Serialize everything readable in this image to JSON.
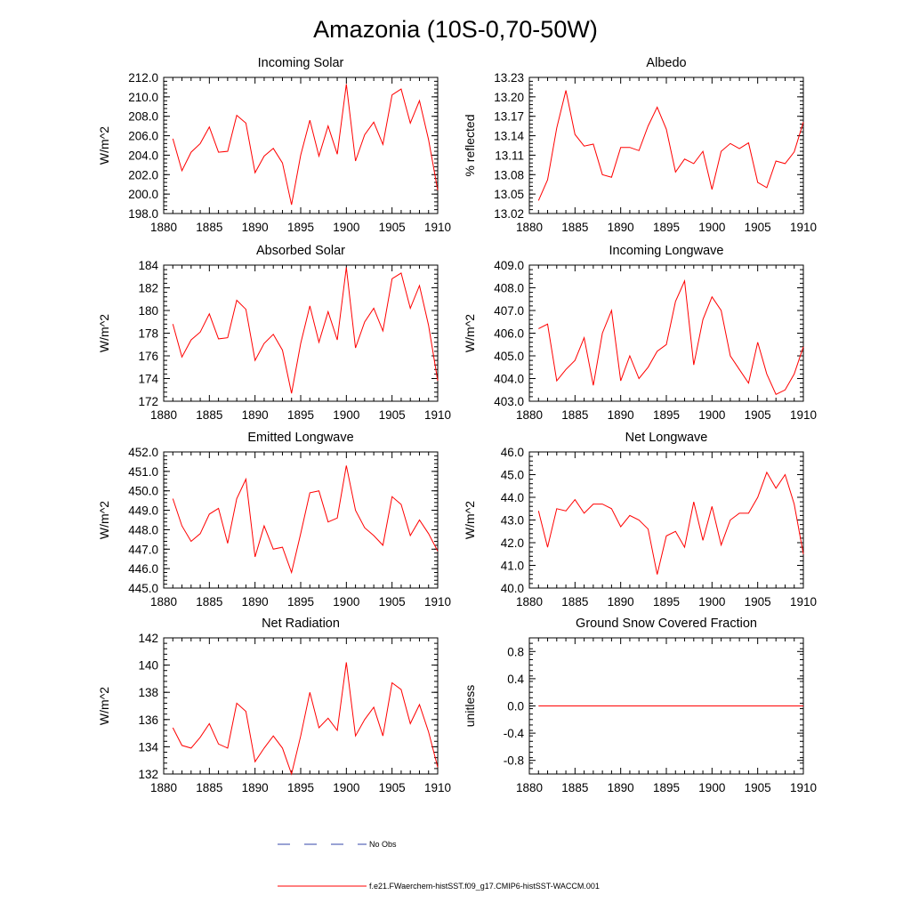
{
  "figure": {
    "title": "Amazonia (10S-0,70-50W)"
  },
  "colors": {
    "model_line": "#ff0000",
    "obs_line": "#3344aa",
    "axis": "#000000"
  },
  "legend": {
    "obs_label": "No Obs",
    "model_label": "f.e21.FWaerchem-histSST.f09_g17.CMIP6-histSST-WACCM.001"
  },
  "chart_data": [
    {
      "type": "line",
      "title": "Incoming Solar",
      "ylabel": "W/m^2",
      "xlim": [
        1880,
        1910
      ],
      "ylim": [
        198.0,
        212.0
      ],
      "xticks": [
        1880,
        1885,
        1890,
        1895,
        1900,
        1905,
        1910
      ],
      "yticks": [
        "198.0",
        "200.0",
        "202.0",
        "204.0",
        "206.0",
        "208.0",
        "210.0",
        "212.0"
      ],
      "x": [
        1881,
        1882,
        1883,
        1884,
        1885,
        1886,
        1887,
        1888,
        1889,
        1890,
        1891,
        1892,
        1893,
        1894,
        1895,
        1896,
        1897,
        1898,
        1899,
        1900,
        1901,
        1902,
        1903,
        1904,
        1905,
        1906,
        1907,
        1908,
        1909,
        1910
      ],
      "series": [
        {
          "values": [
            205.7,
            202.4,
            204.3,
            205.2,
            206.9,
            204.3,
            204.4,
            208.1,
            207.3,
            202.2,
            203.9,
            204.7,
            203.2,
            198.9,
            204.0,
            207.6,
            203.9,
            207.0,
            204.1,
            211.3,
            203.4,
            206.1,
            207.4,
            205.1,
            210.2,
            210.8,
            207.3,
            209.6,
            205.6,
            200.4
          ]
        }
      ]
    },
    {
      "type": "line",
      "title": "Albedo",
      "ylabel": "% reflected",
      "xlim": [
        1880,
        1910
      ],
      "ylim": [
        13.02,
        13.23
      ],
      "xticks": [
        1880,
        1885,
        1890,
        1895,
        1900,
        1905,
        1910
      ],
      "yticks": [
        "13.02",
        "13.05",
        "13.08",
        "13.11",
        "13.14",
        "13.17",
        "13.20",
        "13.23"
      ],
      "x": [
        1881,
        1882,
        1883,
        1884,
        1885,
        1886,
        1887,
        1888,
        1889,
        1890,
        1891,
        1892,
        1893,
        1894,
        1895,
        1896,
        1897,
        1898,
        1899,
        1900,
        1901,
        1902,
        1903,
        1904,
        1905,
        1906,
        1907,
        1908,
        1909,
        1910
      ],
      "series": [
        {
          "values": [
            13.04,
            13.072,
            13.152,
            13.21,
            13.142,
            13.124,
            13.127,
            13.08,
            13.076,
            13.122,
            13.122,
            13.117,
            13.155,
            13.184,
            13.15,
            13.084,
            13.104,
            13.097,
            13.116,
            13.057,
            13.116,
            13.128,
            13.12,
            13.129,
            13.068,
            13.06,
            13.101,
            13.097,
            13.115,
            13.161
          ]
        }
      ]
    },
    {
      "type": "line",
      "title": "Absorbed Solar",
      "ylabel": "W/m^2",
      "xlim": [
        1880,
        1910
      ],
      "ylim": [
        172,
        184
      ],
      "xticks": [
        1880,
        1885,
        1890,
        1895,
        1900,
        1905,
        1910
      ],
      "yticks": [
        "172",
        "174",
        "176",
        "178",
        "180",
        "182",
        "184"
      ],
      "x": [
        1881,
        1882,
        1883,
        1884,
        1885,
        1886,
        1887,
        1888,
        1889,
        1890,
        1891,
        1892,
        1893,
        1894,
        1895,
        1896,
        1897,
        1898,
        1899,
        1900,
        1901,
        1902,
        1903,
        1904,
        1905,
        1906,
        1907,
        1908,
        1909,
        1910
      ],
      "series": [
        {
          "values": [
            178.8,
            175.9,
            177.4,
            178.1,
            179.7,
            177.5,
            177.6,
            180.9,
            180.1,
            175.6,
            177.1,
            177.9,
            176.5,
            172.7,
            177.1,
            180.4,
            177.2,
            179.9,
            177.4,
            183.8,
            176.7,
            179.0,
            180.2,
            178.2,
            182.8,
            183.3,
            180.2,
            182.2,
            178.7,
            173.8
          ]
        }
      ]
    },
    {
      "type": "line",
      "title": "Incoming Longwave",
      "ylabel": "W/m^2",
      "xlim": [
        1880,
        1910
      ],
      "ylim": [
        403.0,
        409.0
      ],
      "xticks": [
        1880,
        1885,
        1890,
        1895,
        1900,
        1905,
        1910
      ],
      "yticks": [
        "403.0",
        "404.0",
        "405.0",
        "406.0",
        "407.0",
        "408.0",
        "409.0"
      ],
      "x": [
        1881,
        1882,
        1883,
        1884,
        1885,
        1886,
        1887,
        1888,
        1889,
        1890,
        1891,
        1892,
        1893,
        1894,
        1895,
        1896,
        1897,
        1898,
        1899,
        1900,
        1901,
        1902,
        1903,
        1904,
        1905,
        1906,
        1907,
        1908,
        1909,
        1910
      ],
      "series": [
        {
          "values": [
            406.2,
            406.4,
            403.9,
            404.4,
            404.8,
            405.8,
            403.7,
            406.0,
            407.0,
            403.9,
            405.0,
            404.0,
            404.5,
            405.2,
            405.5,
            407.4,
            408.3,
            404.6,
            406.6,
            407.6,
            407.0,
            405.0,
            404.4,
            403.8,
            405.6,
            404.2,
            403.3,
            403.5,
            404.2,
            405.4
          ]
        }
      ]
    },
    {
      "type": "line",
      "title": "Emitted Longwave",
      "ylabel": "W/m^2",
      "xlim": [
        1880,
        1910
      ],
      "ylim": [
        445.0,
        452.0
      ],
      "xticks": [
        1880,
        1885,
        1890,
        1895,
        1900,
        1905,
        1910
      ],
      "yticks": [
        "445.0",
        "446.0",
        "447.0",
        "448.0",
        "449.0",
        "450.0",
        "451.0",
        "452.0"
      ],
      "x": [
        1881,
        1882,
        1883,
        1884,
        1885,
        1886,
        1887,
        1888,
        1889,
        1890,
        1891,
        1892,
        1893,
        1894,
        1895,
        1896,
        1897,
        1898,
        1899,
        1900,
        1901,
        1902,
        1903,
        1904,
        1905,
        1906,
        1907,
        1908,
        1909,
        1910
      ],
      "series": [
        {
          "values": [
            449.6,
            448.2,
            447.4,
            447.8,
            448.8,
            449.1,
            447.3,
            449.6,
            450.6,
            446.6,
            448.2,
            447.0,
            447.1,
            445.8,
            447.8,
            449.9,
            450.0,
            448.4,
            448.6,
            451.3,
            449.0,
            448.1,
            447.7,
            447.2,
            449.7,
            449.3,
            447.7,
            448.5,
            447.8,
            446.9
          ]
        }
      ]
    },
    {
      "type": "line",
      "title": "Net Longwave",
      "ylabel": "W/m^2",
      "xlim": [
        1880,
        1910
      ],
      "ylim": [
        40.0,
        46.0
      ],
      "xticks": [
        1880,
        1885,
        1890,
        1895,
        1900,
        1905,
        1910
      ],
      "yticks": [
        "40.0",
        "41.0",
        "42.0",
        "43.0",
        "44.0",
        "45.0",
        "46.0"
      ],
      "x": [
        1881,
        1882,
        1883,
        1884,
        1885,
        1886,
        1887,
        1888,
        1889,
        1890,
        1891,
        1892,
        1893,
        1894,
        1895,
        1896,
        1897,
        1898,
        1899,
        1900,
        1901,
        1902,
        1903,
        1904,
        1905,
        1906,
        1907,
        1908,
        1909,
        1910
      ],
      "series": [
        {
          "values": [
            43.4,
            41.8,
            43.5,
            43.4,
            43.9,
            43.3,
            43.7,
            43.7,
            43.5,
            42.7,
            43.2,
            43.0,
            42.6,
            40.6,
            42.3,
            42.5,
            41.8,
            43.8,
            42.1,
            43.6,
            41.9,
            43.0,
            43.3,
            43.3,
            44.0,
            45.1,
            44.4,
            45.0,
            43.7,
            41.5
          ]
        }
      ]
    },
    {
      "type": "line",
      "title": "Net Radiation",
      "ylabel": "W/m^2",
      "xlim": [
        1880,
        1910
      ],
      "ylim": [
        132,
        142
      ],
      "xticks": [
        1880,
        1885,
        1890,
        1895,
        1900,
        1905,
        1910
      ],
      "yticks": [
        "132",
        "134",
        "136",
        "138",
        "140",
        "142"
      ],
      "x": [
        1881,
        1882,
        1883,
        1884,
        1885,
        1886,
        1887,
        1888,
        1889,
        1890,
        1891,
        1892,
        1893,
        1894,
        1895,
        1896,
        1897,
        1898,
        1899,
        1900,
        1901,
        1902,
        1903,
        1904,
        1905,
        1906,
        1907,
        1908,
        1909,
        1910
      ],
      "series": [
        {
          "values": [
            135.4,
            134.1,
            133.9,
            134.7,
            135.7,
            134.2,
            133.9,
            137.2,
            136.6,
            132.9,
            133.9,
            134.8,
            133.9,
            132.0,
            134.8,
            138.0,
            135.4,
            136.1,
            135.2,
            140.2,
            134.8,
            136.0,
            136.9,
            134.8,
            138.7,
            138.2,
            135.7,
            137.1,
            135.1,
            132.5
          ]
        }
      ]
    },
    {
      "type": "line",
      "title": "Ground Snow Covered Fraction",
      "ylabel": "unitless",
      "xlim": [
        1880,
        1910
      ],
      "ylim": [
        -1.0,
        1.0
      ],
      "xticks": [
        1880,
        1885,
        1890,
        1895,
        1900,
        1905,
        1910
      ],
      "yticks": [
        "-0.8",
        "-0.4",
        "0.0",
        "0.4",
        "0.8"
      ],
      "x": [
        1881,
        1882,
        1883,
        1884,
        1885,
        1886,
        1887,
        1888,
        1889,
        1890,
        1891,
        1892,
        1893,
        1894,
        1895,
        1896,
        1897,
        1898,
        1899,
        1900,
        1901,
        1902,
        1903,
        1904,
        1905,
        1906,
        1907,
        1908,
        1909,
        1910
      ],
      "series": [
        {
          "values": [
            0,
            0,
            0,
            0,
            0,
            0,
            0,
            0,
            0,
            0,
            0,
            0,
            0,
            0,
            0,
            0,
            0,
            0,
            0,
            0,
            0,
            0,
            0,
            0,
            0,
            0,
            0,
            0,
            0,
            0
          ]
        }
      ]
    }
  ]
}
